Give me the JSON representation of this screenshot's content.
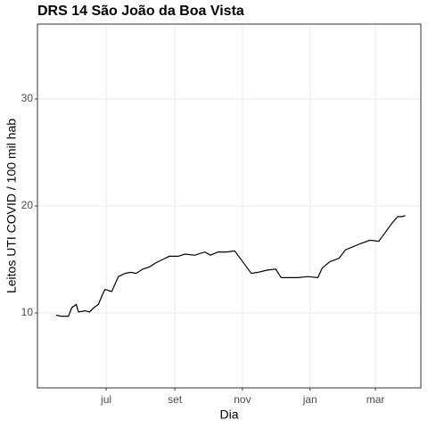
{
  "chart_data": {
    "type": "line",
    "title": "DRS 14 São João da Boa Vista",
    "x_label": "Dia",
    "y_label": "Leitos UTI COVID / 100 mil hab",
    "series": [
      {
        "name": "DRS 14 São João da Boa Vista",
        "color": "#000000",
        "x": [
          -45,
          -41,
          -34,
          -31,
          -27,
          -25,
          -19,
          -15,
          -11,
          -7,
          -3,
          -1,
          5,
          11,
          17,
          22,
          27,
          33,
          39,
          45,
          51,
          57,
          65,
          71,
          80,
          89,
          94,
          101,
          109,
          116,
          121,
          126,
          131,
          137,
          145,
          153,
          158,
          165,
          173,
          182,
          191,
          195,
          202,
          210,
          216,
          223,
          230,
          238,
          246,
          251,
          258,
          263,
          267,
          270
        ],
        "values": [
          9.8,
          9.7,
          9.7,
          10.5,
          10.8,
          10.1,
          10.2,
          10.1,
          10.5,
          10.8,
          11.8,
          12.2,
          12.0,
          13.4,
          13.7,
          13.8,
          13.7,
          14.1,
          14.3,
          14.7,
          15.0,
          15.3,
          15.3,
          15.5,
          15.4,
          15.7,
          15.4,
          15.7,
          15.7,
          15.8,
          15.1,
          14.4,
          13.7,
          13.8,
          14.0,
          14.1,
          13.3,
          13.3,
          13.3,
          13.4,
          13.3,
          14.2,
          14.8,
          15.1,
          15.9,
          16.2,
          16.5,
          16.8,
          16.7,
          17.4,
          18.4,
          19.0,
          19.0,
          19.1
        ]
      }
    ],
    "xlim": [
      -62,
      284
    ],
    "xticks": [
      {
        "value": 0,
        "label": "jul"
      },
      {
        "value": 62,
        "label": "set"
      },
      {
        "value": 123,
        "label": "nov"
      },
      {
        "value": 184,
        "label": "jan"
      },
      {
        "value": 243,
        "label": "mar"
      }
    ],
    "ylim": [
      3,
      37
    ],
    "yticks": [
      10,
      20,
      30
    ],
    "grid": true
  }
}
